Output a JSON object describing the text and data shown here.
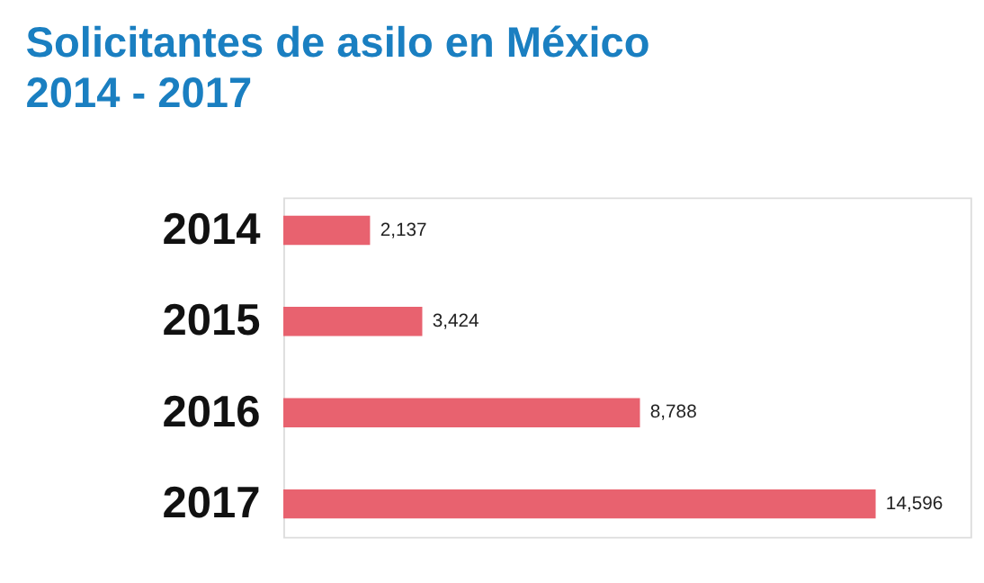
{
  "chart_data": {
    "type": "bar",
    "orientation": "horizontal",
    "title": "Solicitantes de asilo en México\n2014 - 2017",
    "categories": [
      "2014",
      "2015",
      "2016",
      "2017"
    ],
    "values": [
      2137,
      3424,
      8788,
      14596
    ],
    "value_labels": [
      "2,137",
      "3,424",
      "8,788",
      "14,596"
    ],
    "color": "#e8626f"
  }
}
